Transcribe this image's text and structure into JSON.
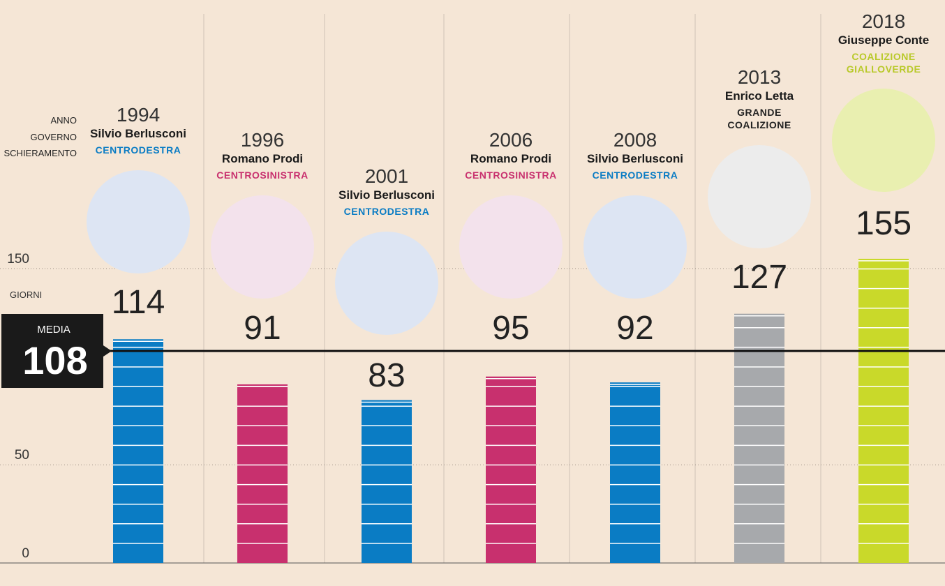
{
  "chart_data": {
    "type": "bar",
    "side_labels": {
      "anno": "ANNO",
      "governo": "GOVERNO",
      "schieramento": "SCHIERAMENTO",
      "giorni": "GIORNI"
    },
    "average_label": "MEDIA",
    "average": 108,
    "categories": [
      "1994",
      "1996",
      "2001",
      "2006",
      "2008",
      "2013",
      "2018"
    ],
    "governments": [
      "Silvio Berlusconi",
      "Romano Prodi",
      "Silvio Berlusconi",
      "Romano Prodi",
      "Silvio Berlusconi",
      "Enrico Letta",
      "Giuseppe Conte"
    ],
    "coalitions": [
      "CENTRODESTRA",
      "CENTROSINISTRA",
      "CENTRODESTRA",
      "CENTROSINISTRA",
      "CENTRODESTRA",
      "GRANDE COALIZIONE",
      "COALIZIONE GIALLOVERDE"
    ],
    "values": [
      114,
      91,
      83,
      95,
      92,
      127,
      155
    ],
    "colors": [
      "#0a7cc4",
      "#c8306e",
      "#0a7cc4",
      "#c8306e",
      "#0a7cc4",
      "#a7a9ac",
      "#c9d92a"
    ],
    "coalition_colors": [
      "#0a7cc4",
      "#c8306e",
      "#0a7cc4",
      "#c8306e",
      "#0a7cc4",
      "#222222",
      "#b9c92a"
    ],
    "circle_colors": [
      "#dde5f3",
      "#f3e2ec",
      "#dde5f3",
      "#f3e2ec",
      "#dde5f3",
      "#ececec",
      "#e9efb0"
    ],
    "ylim": [
      0,
      150
    ],
    "yticks": [
      0,
      50,
      150
    ],
    "grid": true
  }
}
